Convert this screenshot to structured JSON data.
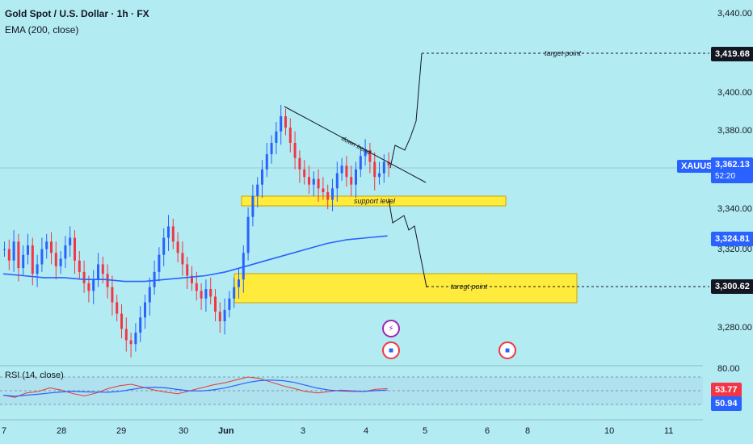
{
  "header": {
    "title": "Gold Spot / U.S. Dollar · 1h · FX",
    "indicator": "EMA (200, close)"
  },
  "rsi": {
    "label": "RSI (14, close)",
    "levels": {
      "upper": "80.00",
      "value1": "53.77",
      "value2": "50.94"
    }
  },
  "symbol": "XAUUSD",
  "current_price": {
    "value": "3,362.13",
    "countdown": "52:20"
  },
  "price_tags": {
    "target": "3,419.68",
    "ema": "3,324.81",
    "down_target": "3,300.62"
  },
  "y_axis": {
    "ticks": [
      "3,440.00",
      "3,400.00",
      "3,380.00",
      "3,340.00",
      "3,320.00",
      "3,280.00"
    ]
  },
  "x_axis": {
    "ticks": [
      "7",
      "28",
      "29",
      "30",
      "Jun",
      "3",
      "4",
      "5",
      "6",
      "8",
      "10",
      "11"
    ]
  },
  "annotations": {
    "target_up": "target point",
    "target_down": "taregt point",
    "support": "support  level",
    "downtrend": "down trend"
  },
  "colors": {
    "background": "#b2ebf2",
    "bull": "#2962ff",
    "bear": "#f23645",
    "zone": "#ffeb3b",
    "ema": "#2962ff"
  },
  "chart_data": {
    "type": "candlestick",
    "symbol": "XAUUSD",
    "timeframe": "1h",
    "ylim": [
      3260,
      3445
    ],
    "close_path": [
      3318,
      3312,
      3322,
      3308,
      3315,
      3320,
      3305,
      3310,
      3318,
      3322,
      3316,
      3309,
      3313,
      3320,
      3324,
      3312,
      3306,
      3300,
      3296,
      3302,
      3310,
      3305,
      3298,
      3290,
      3284,
      3276,
      3270,
      3268,
      3274,
      3282,
      3290,
      3298,
      3306,
      3315,
      3324,
      3330,
      3322,
      3316,
      3310,
      3304,
      3300,
      3296,
      3292,
      3297,
      3293,
      3285,
      3280,
      3286,
      3292,
      3298,
      3302,
      3316,
      3335,
      3346,
      3352,
      3360,
      3368,
      3374,
      3380,
      3388,
      3382,
      3374,
      3366,
      3360,
      3356,
      3352,
      3355,
      3350,
      3348,
      3344,
      3350,
      3358,
      3362,
      3356,
      3352,
      3360,
      3367,
      3370,
      3364,
      3356,
      3358,
      3364,
      3362
    ],
    "ema200": [
      3305,
      3304,
      3303,
      3303,
      3302,
      3302,
      3301,
      3301,
      3302,
      3303,
      3304,
      3306,
      3309,
      3312,
      3315,
      3318,
      3321,
      3323,
      3324,
      3325
    ],
    "rsi_path": [
      45,
      42,
      48,
      50,
      55,
      52,
      47,
      44,
      48,
      54,
      58,
      60,
      56,
      52,
      49,
      47,
      51,
      55,
      59,
      62,
      66,
      70,
      68,
      63,
      58,
      54,
      50,
      48,
      50,
      52,
      51,
      50,
      53,
      54
    ],
    "rsi_range": [
      20,
      80
    ]
  }
}
